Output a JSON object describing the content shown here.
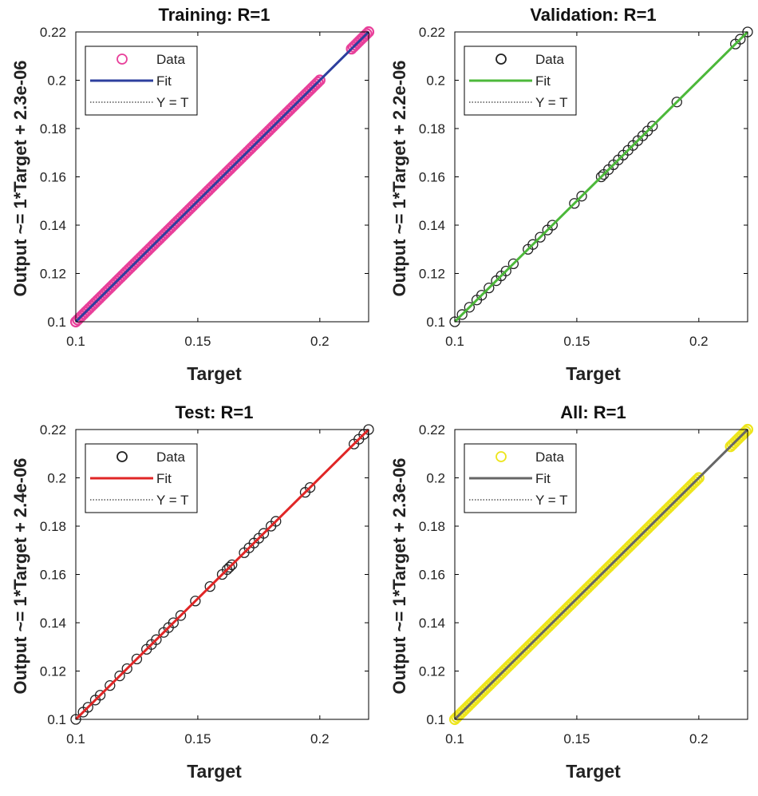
{
  "chart_data": [
    {
      "type": "scatter",
      "title": "Training: R=1",
      "xlabel": "Target",
      "ylabel": "Output ~= 1*Target + 2.3e-06",
      "xlim": [
        0.1,
        0.22
      ],
      "ylim": [
        0.1,
        0.22
      ],
      "xticks": [
        0.1,
        0.15,
        0.2
      ],
      "xtick_labels": [
        "0.1",
        "0.15",
        "0.2"
      ],
      "yticks": [
        0.1,
        0.12,
        0.14,
        0.16,
        0.18,
        0.2,
        0.22
      ],
      "ytick_labels": [
        "0.1",
        "0.12",
        "0.14",
        "0.16",
        "0.18",
        "0.2",
        "0.22"
      ],
      "legend": [
        "Data",
        "Fit",
        "Y = T"
      ],
      "legend_position": "top-left",
      "marker_color": "#e8409a",
      "fit_color": "#2d3f9e",
      "grid": false,
      "fit": {
        "slope": 1,
        "intercept": 2.3e-06
      },
      "data_density": "dense",
      "data_range": [
        [
          0.1,
          0.2
        ],
        [
          0.213,
          0.22
        ]
      ]
    },
    {
      "type": "scatter",
      "title": "Validation: R=1",
      "xlabel": "Target",
      "ylabel": "Output ~= 1*Target + 2.2e-06",
      "xlim": [
        0.1,
        0.22
      ],
      "ylim": [
        0.1,
        0.22
      ],
      "xticks": [
        0.1,
        0.15,
        0.2
      ],
      "xtick_labels": [
        "0.1",
        "0.15",
        "0.2"
      ],
      "yticks": [
        0.1,
        0.12,
        0.14,
        0.16,
        0.18,
        0.2,
        0.22
      ],
      "ytick_labels": [
        "0.1",
        "0.12",
        "0.14",
        "0.16",
        "0.18",
        "0.2",
        "0.22"
      ],
      "legend": [
        "Data",
        "Fit",
        "Y = T"
      ],
      "legend_position": "top-left",
      "marker_color": "#222222",
      "fit_color": "#4cb83a",
      "grid": false,
      "fit": {
        "slope": 1,
        "intercept": 2.2e-06
      },
      "x": [
        0.1,
        0.103,
        0.106,
        0.109,
        0.111,
        0.114,
        0.117,
        0.119,
        0.121,
        0.124,
        0.13,
        0.132,
        0.135,
        0.138,
        0.14,
        0.149,
        0.152,
        0.16,
        0.161,
        0.163,
        0.165,
        0.167,
        0.169,
        0.171,
        0.173,
        0.175,
        0.177,
        0.179,
        0.181,
        0.191,
        0.215,
        0.217,
        0.22
      ]
    },
    {
      "type": "scatter",
      "title": "Test: R=1",
      "xlabel": "Target",
      "ylabel": "Output ~= 1*Target + 2.4e-06",
      "xlim": [
        0.1,
        0.22
      ],
      "ylim": [
        0.1,
        0.22
      ],
      "xticks": [
        0.1,
        0.15,
        0.2
      ],
      "xtick_labels": [
        "0.1",
        "0.15",
        "0.2"
      ],
      "yticks": [
        0.1,
        0.12,
        0.14,
        0.16,
        0.18,
        0.2,
        0.22
      ],
      "ytick_labels": [
        "0.1",
        "0.12",
        "0.14",
        "0.16",
        "0.18",
        "0.2",
        "0.22"
      ],
      "legend": [
        "Data",
        "Fit",
        "Y = T"
      ],
      "legend_position": "top-left",
      "marker_color": "#222222",
      "fit_color": "#e02626",
      "grid": false,
      "fit": {
        "slope": 1,
        "intercept": 2.4e-06
      },
      "x": [
        0.1,
        0.103,
        0.105,
        0.108,
        0.11,
        0.114,
        0.118,
        0.121,
        0.125,
        0.129,
        0.131,
        0.133,
        0.136,
        0.138,
        0.14,
        0.143,
        0.149,
        0.155,
        0.16,
        0.162,
        0.163,
        0.164,
        0.169,
        0.171,
        0.173,
        0.175,
        0.177,
        0.18,
        0.182,
        0.194,
        0.196,
        0.214,
        0.216,
        0.218,
        0.22
      ]
    },
    {
      "type": "scatter",
      "title": "All: R=1",
      "xlabel": "Target",
      "ylabel": "Output ~= 1*Target + 2.3e-06",
      "xlim": [
        0.1,
        0.22
      ],
      "ylim": [
        0.1,
        0.22
      ],
      "xticks": [
        0.1,
        0.15,
        0.2
      ],
      "xtick_labels": [
        "0.1",
        "0.15",
        "0.2"
      ],
      "yticks": [
        0.1,
        0.12,
        0.14,
        0.16,
        0.18,
        0.2,
        0.22
      ],
      "ytick_labels": [
        "0.1",
        "0.12",
        "0.14",
        "0.16",
        "0.18",
        "0.2",
        "0.22"
      ],
      "legend": [
        "Data",
        "Fit",
        "Y = T"
      ],
      "legend_position": "top-left",
      "marker_color": "#ede51c",
      "fit_color": "#666666",
      "grid": false,
      "fit": {
        "slope": 1,
        "intercept": 2.3e-06
      },
      "data_density": "dense",
      "data_range": [
        [
          0.1,
          0.2
        ],
        [
          0.213,
          0.22
        ]
      ]
    }
  ]
}
